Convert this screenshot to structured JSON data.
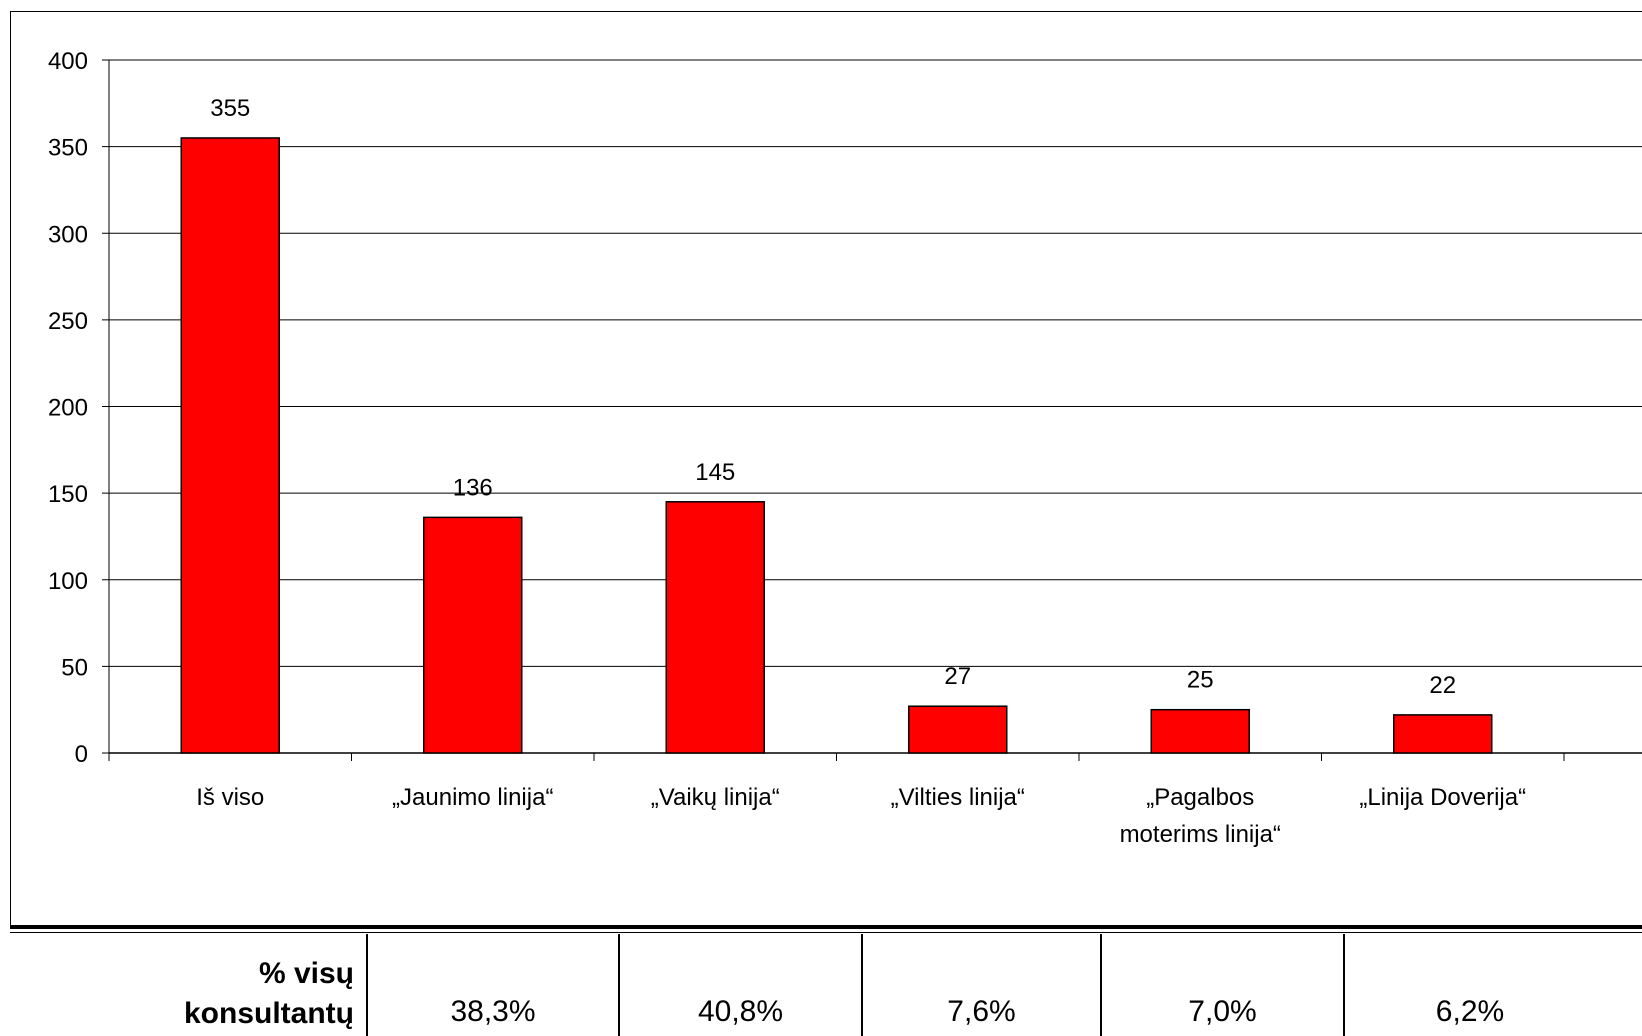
{
  "chart_data": {
    "type": "bar",
    "categories": [
      "Iš viso",
      "„Jaunimo linija“",
      "„Vaikų linija“",
      "„Vilties linija“",
      "„Pagalbos moterims linija“",
      "„Linija Doverija“"
    ],
    "category_lines": [
      [
        "Iš viso"
      ],
      [
        "„Jaunimo linija“"
      ],
      [
        "„Vaikų linija“"
      ],
      [
        "„Vilties linija“"
      ],
      [
        "„Pagalbos",
        "moterims linija“"
      ],
      [
        "„Linija Doverija“"
      ]
    ],
    "values": [
      355,
      136,
      145,
      27,
      25,
      22
    ],
    "data_labels": [
      "355",
      "136",
      "145",
      "27",
      "25",
      "22"
    ],
    "ylim": [
      0,
      400
    ],
    "yticks": [
      0,
      50,
      100,
      150,
      200,
      250,
      300,
      350,
      400
    ],
    "grid": true,
    "bar_color": "#ff0000",
    "title": "",
    "xlabel": "",
    "ylabel": ""
  },
  "table": {
    "header": "% visų\nkonsultantų",
    "values": [
      "38,3%",
      "40,8%",
      "7,6%",
      "7,0%",
      "6,2%"
    ]
  }
}
